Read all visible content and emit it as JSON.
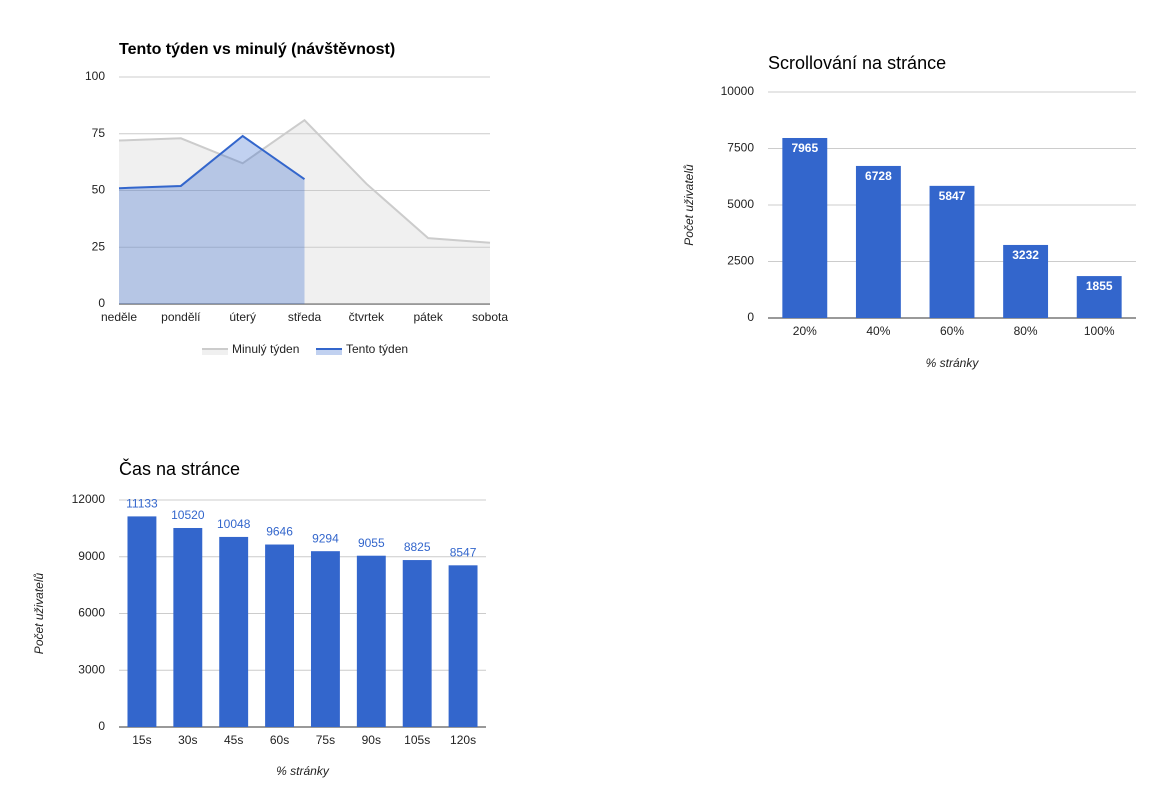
{
  "chart_data": [
    {
      "type": "area",
      "title": "Tento týden vs minulý (návštěvnost)",
      "categories": [
        "neděle",
        "pondělí",
        "úterý",
        "středa",
        "čtvrtek",
        "pátek",
        "sobota"
      ],
      "series": [
        {
          "name": "Minulý týden",
          "color": "#cccccc",
          "values": [
            72,
            73,
            62,
            81,
            53,
            29,
            27
          ]
        },
        {
          "name": "Tento týden",
          "color": "#3366cc",
          "values": [
            51,
            52,
            74,
            55,
            null,
            null,
            null
          ]
        }
      ],
      "ylim": [
        0,
        100
      ],
      "yticks": [
        0,
        25,
        50,
        75,
        100
      ],
      "grid": true,
      "legend": "bottom"
    },
    {
      "type": "bar",
      "title": "Scrollování na stránce",
      "categories": [
        "20%",
        "40%",
        "60%",
        "80%",
        "100%"
      ],
      "values": [
        7965,
        6728,
        5847,
        3232,
        1855
      ],
      "color": "#3366cc",
      "xlabel": "% stránky",
      "ylabel": "Počet uživatelů",
      "ylim": [
        0,
        10000
      ],
      "yticks": [
        0,
        2500,
        5000,
        7500,
        10000
      ],
      "grid": true
    },
    {
      "type": "bar",
      "title": "Čas na stránce",
      "categories": [
        "15s",
        "30s",
        "45s",
        "60s",
        "75s",
        "90s",
        "105s",
        "120s"
      ],
      "values": [
        11133,
        10520,
        10048,
        9646,
        9294,
        9055,
        8825,
        8547
      ],
      "color": "#3366cc",
      "xlabel": "% stránky",
      "ylabel": "Počet uživatelů",
      "ylim": [
        0,
        12000
      ],
      "yticks": [
        0,
        3000,
        6000,
        9000,
        12000
      ],
      "grid": true
    }
  ]
}
